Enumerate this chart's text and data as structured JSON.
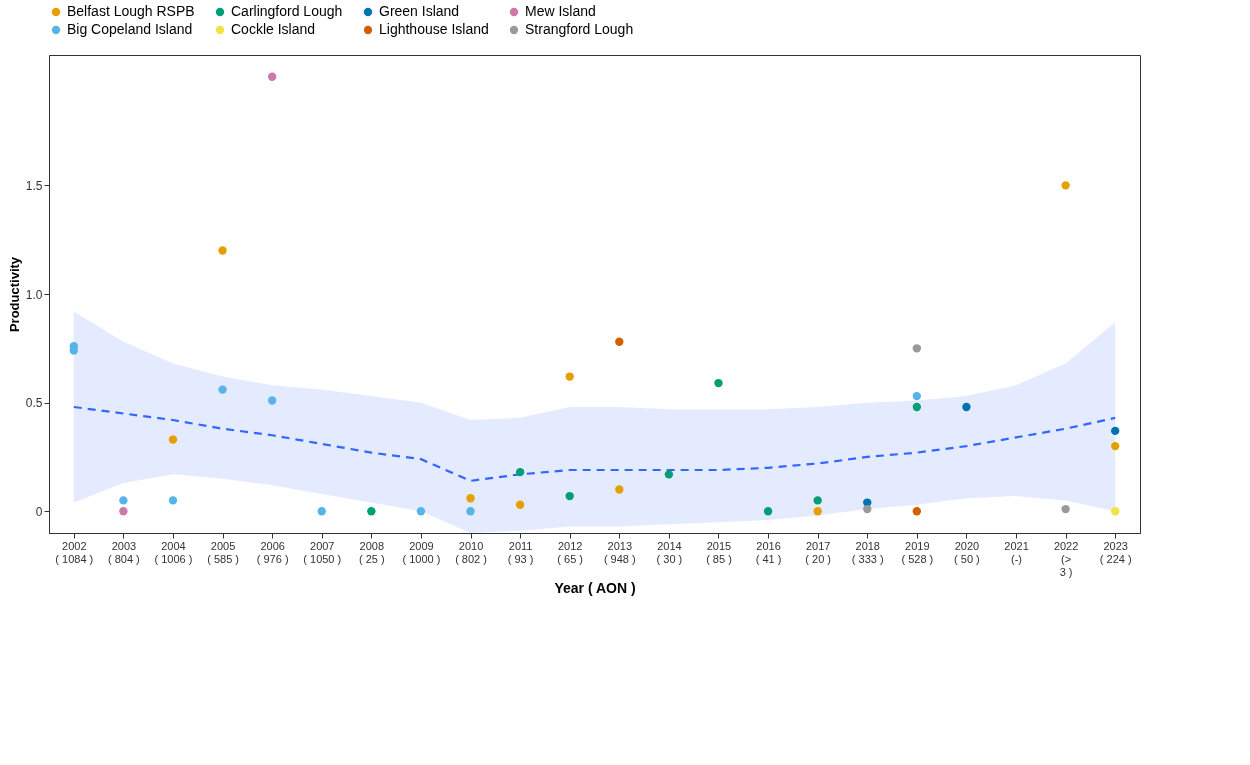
{
  "chart_data": {
    "type": "scatter",
    "xlabel": "Year ( AON )",
    "ylabel": "Productivity",
    "categories": [
      "2002\n( 1084 )",
      "2003\n( 804 )",
      "2004\n( 1006 )",
      "2005\n( 585 )",
      "2006\n( 976 )",
      "2007\n( 1050 )",
      "2008\n( 25 )",
      "2009\n( 1000 )",
      "2010\n( 802 )",
      "2011\n( 93 )",
      "2012\n( 65 )",
      "2013\n( 948 )",
      "2014\n( 30 )",
      "2015\n( 85 )",
      "2016\n( 41 )",
      "2017\n( 20 )",
      "2018\n( 333 )",
      "2019\n( 528 )",
      "2020\n( 50 )",
      "2021\n(-)",
      "2022\n(>\n3 )",
      "2023\n( 224 )"
    ],
    "ylim": [
      -0.1,
      2.1
    ],
    "yticks": [
      0.0,
      {
        "value": 0.5,
        "label": "0.5"
      },
      {
        "value": 1,
        "label": "1.0"
      },
      {
        "value": 1.5,
        "label": "1.5"
      }
    ],
    "grid": false,
    "legend": "top",
    "marker": "circle",
    "series": [
      {
        "type": "line",
        "color": "#3366ff",
        "line_style": "dashed",
        "marker": "none",
        "values": [
          0.48,
          0.45,
          0.42,
          0.38,
          0.35,
          0.31,
          0.27,
          0.24,
          0.14,
          0.17,
          0.19,
          0.19,
          0.19,
          0.19,
          0.2,
          0.22,
          0.25,
          0.27,
          0.3,
          0.34,
          0.38,
          0.43
        ],
        "lower": [
          0.04,
          0.13,
          0.17,
          0.15,
          0.12,
          0.08,
          0.04,
          0.0,
          -0.1,
          -0.09,
          -0.07,
          -0.07,
          -0.06,
          -0.05,
          -0.04,
          -0.02,
          0.01,
          0.03,
          0.06,
          0.07,
          0.05,
          0.0
        ],
        "upper": [
          0.92,
          0.78,
          0.68,
          0.62,
          0.58,
          0.56,
          0.53,
          0.5,
          0.42,
          0.43,
          0.48,
          0.48,
          0.47,
          0.47,
          0.47,
          0.48,
          0.5,
          0.51,
          0.53,
          0.58,
          0.68,
          0.87
        ]
      },
      {
        "name": "Belfast Lough RSPB",
        "color": "#e69f00",
        "x": [
          "2004\n( 1006 )",
          "2005\n( 585 )",
          "2010\n( 802 )",
          "2011\n( 93 )",
          "2012\n( 65 )",
          "2013\n( 948 )",
          "2017\n( 20 )",
          "2022\n(>\n3 )",
          "2023\n( 224 )"
        ],
        "values": [
          0.33,
          1.2,
          0.06,
          0.03,
          0.62,
          0.1,
          0.0,
          1.5,
          0.3
        ]
      },
      {
        "name": "Big Copeland Island",
        "color": "#56b4e9",
        "x": [
          "2002\n( 1084 )",
          "2002\n( 1084 )",
          "2003\n( 804 )",
          "2004\n( 1006 )",
          "2005\n( 585 )",
          "2006\n( 976 )",
          "2007\n( 1050 )",
          "2009\n( 1000 )",
          "2010\n( 802 )",
          "2019\n( 528 )"
        ],
        "values": [
          0.76,
          0.74,
          0.05,
          0.05,
          0.56,
          0.51,
          0.0,
          0.0,
          0.0,
          0.53
        ]
      },
      {
        "name": "Carlingford Lough",
        "color": "#009e73",
        "x": [
          "2008\n( 25 )",
          "2011\n( 93 )",
          "2012\n( 65 )",
          "2014\n( 30 )",
          "2015\n( 85 )",
          "2016\n( 41 )",
          "2017\n( 20 )",
          "2019\n( 528 )"
        ],
        "values": [
          0.0,
          0.18,
          0.07,
          0.17,
          0.59,
          0.0,
          0.05,
          0.48
        ]
      },
      {
        "name": "Cockle Island",
        "color": "#f0e442",
        "x": [
          "2023\n( 224 )"
        ],
        "values": [
          0.0
        ]
      },
      {
        "name": "Green Island",
        "color": "#0072b2",
        "x": [
          "2018\n( 333 )",
          "2020\n( 50 )",
          "2023\n( 224 )"
        ],
        "values": [
          0.04,
          0.48,
          0.37
        ]
      },
      {
        "name": "Lighthouse Island",
        "color": "#d55e00",
        "x": [
          "2013\n( 948 )",
          "2019\n( 528 )"
        ],
        "values": [
          0.78,
          0.0
        ]
      },
      {
        "name": "Mew Island",
        "color": "#cc79a7",
        "x": [
          "2003\n( 804 )",
          "2006\n( 976 )"
        ],
        "values": [
          0.0,
          2.0
        ]
      },
      {
        "name": "Strangford Lough",
        "color": "#999999",
        "x": [
          "2018\n( 333 )",
          "2019\n( 528 )",
          "2022\n(>\n3 )"
        ],
        "values": [
          0.01,
          0.75,
          0.01
        ]
      }
    ]
  }
}
